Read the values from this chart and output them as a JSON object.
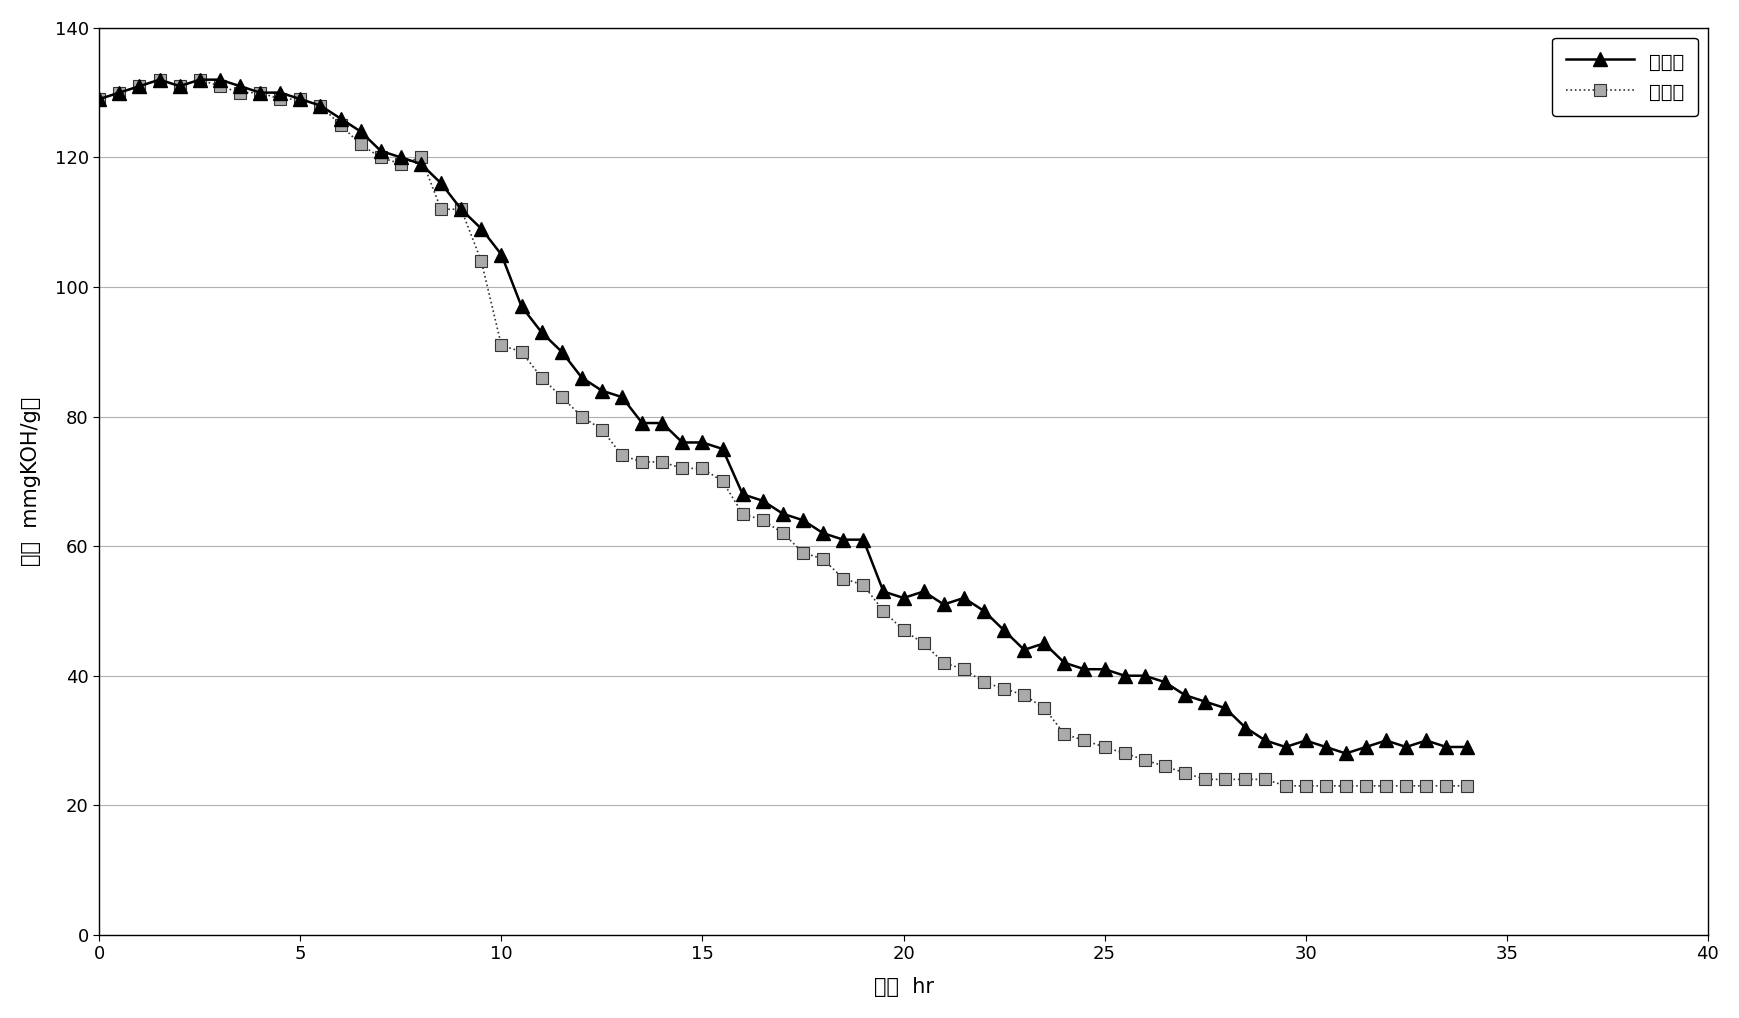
{
  "series1_label": "改造前",
  "series2_label": "改造后",
  "series1_x": [
    0,
    0.5,
    1,
    1.5,
    2,
    2.5,
    3,
    3.5,
    4,
    4.5,
    5,
    5.5,
    6,
    6.5,
    7,
    7.5,
    8,
    8.5,
    9,
    9.5,
    10,
    10.5,
    11,
    11.5,
    12,
    12.5,
    13,
    13.5,
    14,
    14.5,
    15,
    15.5,
    16,
    16.5,
    17,
    17.5,
    18,
    18.5,
    19,
    19.5,
    20,
    20.5,
    21,
    21.5,
    22,
    22.5,
    23,
    23.5,
    24,
    24.5,
    25,
    25.5,
    26,
    26.5,
    27,
    27.5,
    28,
    28.5,
    29,
    29.5,
    30,
    30.5,
    31,
    31.5,
    32,
    32.5,
    33,
    33.5,
    34
  ],
  "series1_y": [
    129,
    130,
    131,
    132,
    131,
    132,
    132,
    131,
    130,
    130,
    129,
    128,
    126,
    124,
    121,
    120,
    119,
    116,
    112,
    109,
    105,
    97,
    93,
    90,
    86,
    84,
    83,
    79,
    79,
    76,
    76,
    75,
    68,
    67,
    65,
    64,
    62,
    61,
    61,
    53,
    52,
    53,
    51,
    52,
    50,
    47,
    44,
    45,
    42,
    41,
    41,
    40,
    40,
    39,
    37,
    36,
    35,
    32,
    30,
    29,
    30,
    29,
    28,
    29,
    30,
    29,
    30,
    29,
    29
  ],
  "series2_x": [
    0,
    0.5,
    1,
    1.5,
    2,
    2.5,
    3,
    3.5,
    4,
    4.5,
    5,
    5.5,
    6,
    6.5,
    7,
    7.5,
    8,
    8.5,
    9,
    9.5,
    10,
    10.5,
    11,
    11.5,
    12,
    12.5,
    13,
    13.5,
    14,
    14.5,
    15,
    15.5,
    16,
    16.5,
    17,
    17.5,
    18,
    18.5,
    19,
    19.5,
    20,
    20.5,
    21,
    21.5,
    22,
    22.5,
    23,
    23.5,
    24,
    24.5,
    25,
    25.5,
    26,
    26.5,
    27,
    27.5,
    28,
    28.5,
    29,
    29.5,
    30,
    30.5,
    31,
    31.5,
    32,
    32.5,
    33,
    33.5,
    34
  ],
  "series2_y": [
    129,
    130,
    131,
    132,
    131,
    132,
    131,
    130,
    130,
    129,
    129,
    128,
    125,
    122,
    120,
    119,
    120,
    112,
    112,
    104,
    91,
    90,
    86,
    83,
    80,
    78,
    74,
    73,
    73,
    72,
    72,
    70,
    65,
    64,
    62,
    59,
    58,
    55,
    54,
    50,
    47,
    45,
    42,
    41,
    39,
    38,
    37,
    35,
    31,
    30,
    29,
    28,
    27,
    26,
    25,
    24,
    24,
    24,
    24,
    23,
    23,
    23,
    23,
    23,
    23,
    23,
    23,
    23,
    23
  ],
  "xlabel": "时间  hr",
  "ylabel": "酸价  mmgKOH/g油",
  "xlim": [
    0,
    40
  ],
  "ylim": [
    0,
    140
  ],
  "xticks": [
    0,
    5,
    10,
    15,
    20,
    25,
    30,
    35,
    40
  ],
  "yticks": [
    0,
    20,
    40,
    60,
    80,
    100,
    120,
    140
  ],
  "bg_color": "#ffffff"
}
